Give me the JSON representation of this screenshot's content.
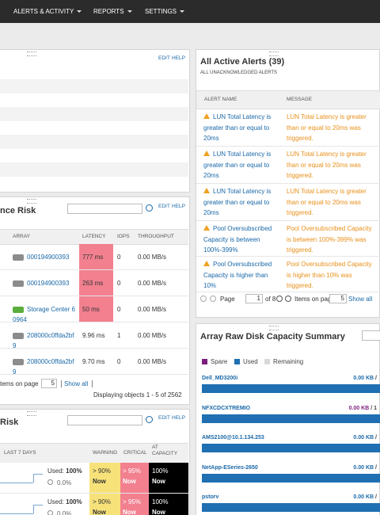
{
  "nav": {
    "items": [
      "ALERTS & ACTIVITY",
      "REPORTS",
      "SETTINGS"
    ]
  },
  "top_panel": {
    "links": [
      "EDIT",
      "HELP"
    ]
  },
  "performance_risk": {
    "title": "nce Risk",
    "links": [
      "EDIT",
      "HELP"
    ],
    "columns": [
      "ARRAY",
      "LATENCY",
      "IOPS",
      "THROUGHPUT"
    ],
    "rows": [
      {
        "array": "000194900393",
        "latency": "777 ms",
        "iops": "0",
        "throughput": "0.00 MB/s",
        "latency_color": "#f2808f",
        "icon_color": "#8c8c8c"
      },
      {
        "array": "000194900393",
        "latency": "263 ms",
        "iops": "0",
        "throughput": "0.00 MB/s",
        "latency_color": "#f2808f",
        "icon_color": "#8c8c8c"
      },
      {
        "array": "Storage Center 60964",
        "latency": "50 ms",
        "iops": "0",
        "throughput": "0.00 MB/s",
        "latency_color": "#f2808f",
        "icon_color": "#5cae3c"
      },
      {
        "array": "208000c0ffda2bf9",
        "latency": "9.96 ms",
        "iops": "1",
        "throughput": "0.00 MB/s",
        "icon_color": "#8c8c8c"
      },
      {
        "array": "208000c0ffda2bf9",
        "latency": "9.70 ms",
        "iops": "0",
        "throughput": "0.00 MB/s",
        "icon_color": "#8c8c8c"
      }
    ],
    "pager": {
      "label": "tems on page",
      "page_size": "5",
      "show_all": "Show all"
    },
    "summary": "Displaying objects 1 - 5 of 2562"
  },
  "capacity_risk": {
    "title": "Risk",
    "links": [
      "EDIT",
      "HELP"
    ],
    "columns": [
      "LAST 7 DAYS",
      "WARNING",
      "CRITICAL",
      "AT CAPACITY"
    ],
    "rows": [
      {
        "used_label": "Used:",
        "used": "100%",
        "change": "0.0%",
        "warning": "> 90%",
        "warning_when": "Now",
        "critical": "> 95%",
        "critical_when": "Now",
        "capacity": "100%",
        "capacity_when": "Now"
      },
      {
        "used_label": "Used:",
        "used": "100%",
        "change": "0.0%",
        "warning": "> 90%",
        "warning_when": "Now",
        "critical": "> 95%",
        "critical_when": "Now",
        "capacity": "100%",
        "capacity_when": "Now"
      }
    ]
  },
  "active_alerts": {
    "title": "All Active Alerts (39)",
    "subtitle": "ALL UNACKNOWLEDGED ALERTS",
    "columns": [
      "ALERT NAME",
      "MESSAGE"
    ],
    "rows": [
      {
        "name": "LUN Total Latency is greater than or equal to 20ms",
        "message": "LUN Total Latency is greater than or equal to 20ms was triggered."
      },
      {
        "name": "LUN Total Latency is greater than or equal to 20ms",
        "message": "LUN Total Latency is greater than or equal to 20ms was triggered."
      },
      {
        "name": "LUN Total Latency is greater than or equal to 20ms",
        "message": "LUN Total Latency is greater than or equal to 20ms was triggered."
      },
      {
        "name": "Pool Oversubscribed Capacity is between 100%-399%",
        "message": "Pool Oversubscribed Capacity is between 100%-399% was triggered."
      },
      {
        "name": "Pool Oversubscribed Capacity is higher than 10%",
        "message": "Pool Oversubscribed Capacity is higher than 10% was triggered."
      }
    ],
    "pager": {
      "page_label": "Page",
      "page": "1",
      "page_total": "of 8",
      "items_label": "Items on page",
      "page_size": "5",
      "show_all": "Show all"
    }
  },
  "disk_capacity": {
    "title": "Array Raw Disk Capacity Summary",
    "legend": [
      {
        "name": "Spare",
        "color": "#7b1e7e"
      },
      {
        "name": "Used",
        "color": "#1f6fb2"
      },
      {
        "name": "Remaining",
        "color": "#d9d9d9"
      }
    ],
    "arrays": [
      {
        "name": "Dell_MD3200i",
        "amount": "0.00 KB",
        "tail": "/"
      },
      {
        "name": "NFXCDCXTREMIO",
        "amount": "0.00 KB",
        "tail": "/ 1",
        "amount_color": "#7b1e7e"
      },
      {
        "name": "AMS2100@10.1.134.253",
        "amount": "0.00 KB",
        "tail": "/"
      },
      {
        "name": "NetApp-ESeries-2650",
        "amount": "0.00 KB",
        "tail": "/"
      },
      {
        "name": "pstorv",
        "amount": "0.00 KB",
        "tail": "/"
      }
    ]
  }
}
